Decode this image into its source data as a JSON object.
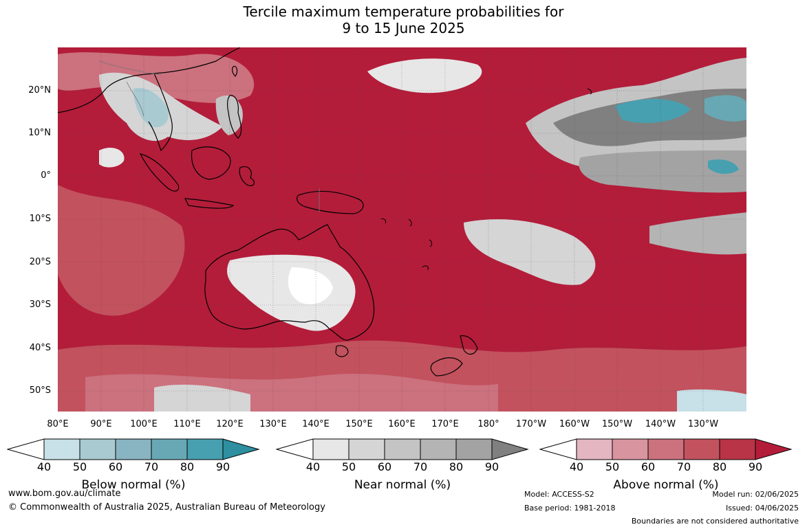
{
  "title_line1": "Tercile maximum temperature probabilities for",
  "title_line2": "9 to 15 June 2025",
  "lat_labels": [
    "20°N",
    "10°N",
    "0°",
    "10°S",
    "20°S",
    "30°S",
    "40°S",
    "50°S"
  ],
  "lon_labels": [
    "80°E",
    "90°E",
    "100°E",
    "110°E",
    "120°E",
    "130°E",
    "140°E",
    "150°E",
    "160°E",
    "170°E",
    "180°",
    "170°W",
    "160°W",
    "150°W",
    "140°W",
    "130°W"
  ],
  "colorbars": [
    {
      "title": "Below normal (%)",
      "ticks": [
        "40",
        "50",
        "60",
        "70",
        "80",
        "90"
      ],
      "colors": [
        "#ffffff",
        "#c8e0e7",
        "#a9cad1",
        "#89b4c2",
        "#68a8b5",
        "#47a0b0",
        "#2d8fa0"
      ]
    },
    {
      "title": "Near normal (%)",
      "ticks": [
        "40",
        "50",
        "60",
        "70",
        "80",
        "90"
      ],
      "colors": [
        "#ffffff",
        "#e7e7e7",
        "#d5d5d5",
        "#c4c4c4",
        "#b4b4b4",
        "#a3a3a3",
        "#808080"
      ]
    },
    {
      "title": "Above normal (%)",
      "ticks": [
        "40",
        "50",
        "60",
        "70",
        "80",
        "90"
      ],
      "colors": [
        "#ffffff",
        "#e3b6c1",
        "#d8949f",
        "#cc717e",
        "#c2525e",
        "#b93446",
        "#b31d3a"
      ]
    }
  ],
  "footer": {
    "website": "www.bom.gov.au/climate",
    "copyright": "© Commonwealth of Australia 2025, Australian Bureau of Meteorology",
    "model": "Model: ACCESS-S2",
    "base_period": "Base period: 1981-2018",
    "model_run": "Model run: 02/06/2025",
    "issued": "Issued: 04/06/2025",
    "disclaimer": "Boundaries are not considered authoritative"
  }
}
